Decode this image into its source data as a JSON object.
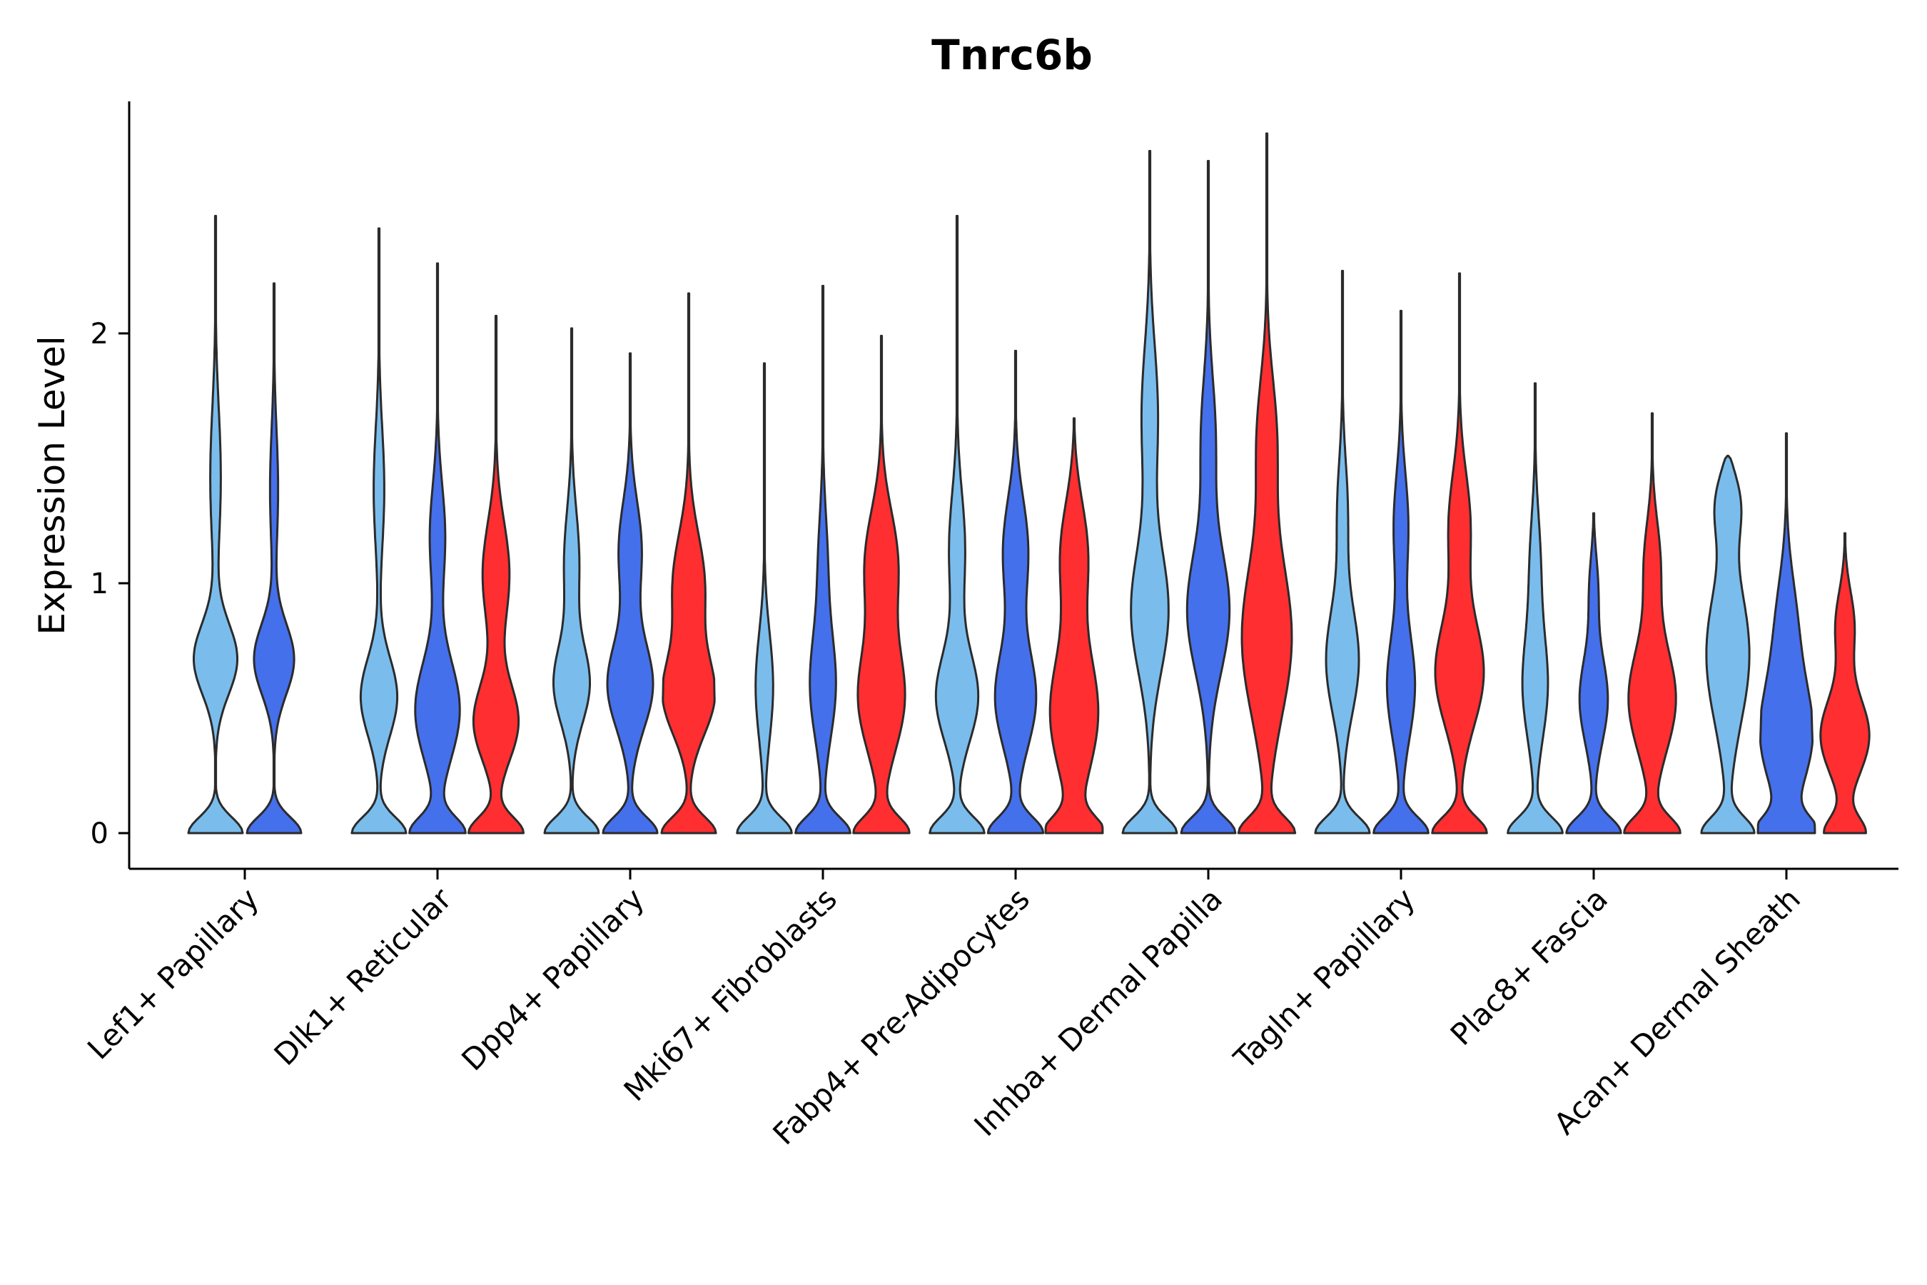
{
  "chart_data": {
    "type": "violin",
    "title": "Tnrc6b",
    "xlabel": "",
    "ylabel": "Expression Level",
    "ylim": [
      -0.14,
      2.95
    ],
    "yticks": [
      0,
      1,
      2
    ],
    "colors": {
      "light_blue": "#7ABDED",
      "blue": "#4570EC",
      "red": "#FF2E30",
      "outline": "#2B2B2B"
    },
    "categories": [
      {
        "label": "Lef1+ Papillary",
        "violins": [
          {
            "color": "light_blue",
            "max": 2.47,
            "w0": 0.95,
            "modes": [
              [
                0.7,
                0.85,
                0.2
              ],
              [
                1.45,
                0.25,
                0.4
              ]
            ]
          },
          {
            "color": "blue",
            "max": 2.2,
            "w0": 0.95,
            "modes": [
              [
                0.7,
                0.8,
                0.2
              ],
              [
                1.4,
                0.2,
                0.35
              ]
            ]
          }
        ]
      },
      {
        "label": "Dlk1+ Reticular",
        "violins": [
          {
            "color": "light_blue",
            "max": 2.42,
            "w0": 0.95,
            "modes": [
              [
                0.55,
                0.7,
                0.22
              ],
              [
                1.4,
                0.25,
                0.35
              ]
            ]
          },
          {
            "color": "blue",
            "max": 2.28,
            "w0": 0.95,
            "modes": [
              [
                0.5,
                0.85,
                0.28
              ],
              [
                1.2,
                0.35,
                0.3
              ]
            ]
          },
          {
            "color": "red",
            "max": 2.07,
            "w0": 0.95,
            "modes": [
              [
                0.45,
                0.85,
                0.22
              ],
              [
                1.05,
                0.6,
                0.3
              ]
            ]
          }
        ]
      },
      {
        "label": "Dpp4+ Papillary",
        "violins": [
          {
            "color": "light_blue",
            "max": 2.02,
            "w0": 0.95,
            "modes": [
              [
                0.6,
                0.7,
                0.22
              ],
              [
                1.1,
                0.35,
                0.3
              ]
            ]
          },
          {
            "color": "blue",
            "max": 1.92,
            "w0": 0.95,
            "modes": [
              [
                0.6,
                0.9,
                0.25
              ],
              [
                1.15,
                0.55,
                0.28
              ]
            ]
          },
          {
            "color": "red",
            "max": 2.16,
            "w0": 0.95,
            "modes": [
              [
                0.55,
                0.95,
                0.22
              ],
              [
                1.0,
                0.7,
                0.3
              ]
            ]
          }
        ]
      },
      {
        "label": "Mki67+ Fibroblasts",
        "violins": [
          {
            "color": "light_blue",
            "max": 1.88,
            "w0": 0.95,
            "modes": [
              [
                0.6,
                0.35,
                0.3
              ]
            ]
          },
          {
            "color": "blue",
            "max": 2.19,
            "w0": 0.95,
            "modes": [
              [
                0.6,
                0.5,
                0.3
              ],
              [
                1.1,
                0.2,
                0.3
              ]
            ]
          },
          {
            "color": "red",
            "max": 1.99,
            "w0": 0.95,
            "modes": [
              [
                0.55,
                0.9,
                0.3
              ],
              [
                1.1,
                0.75,
                0.3
              ]
            ]
          }
        ]
      },
      {
        "label": "Fabp4+ Pre-Adipocytes",
        "violins": [
          {
            "color": "light_blue",
            "max": 2.47,
            "w0": 0.95,
            "modes": [
              [
                0.55,
                0.8,
                0.25
              ],
              [
                1.15,
                0.35,
                0.32
              ]
            ]
          },
          {
            "color": "blue",
            "max": 1.93,
            "w0": 0.95,
            "modes": [
              [
                0.55,
                0.8,
                0.28
              ],
              [
                1.15,
                0.6,
                0.3
              ]
            ]
          },
          {
            "color": "red",
            "max": 1.66,
            "w0": 0.95,
            "modes": [
              [
                0.5,
                0.95,
                0.35
              ],
              [
                1.15,
                0.7,
                0.3
              ]
            ]
          }
        ]
      },
      {
        "label": "Inhba+ Dermal Papilla",
        "violins": [
          {
            "color": "light_blue",
            "max": 2.73,
            "w0": 0.95,
            "modes": [
              [
                0.9,
                0.75,
                0.35
              ],
              [
                1.7,
                0.4,
                0.4
              ]
            ]
          },
          {
            "color": "blue",
            "max": 2.69,
            "w0": 0.95,
            "modes": [
              [
                0.9,
                0.85,
                0.35
              ],
              [
                1.6,
                0.35,
                0.35
              ]
            ]
          },
          {
            "color": "red",
            "max": 2.8,
            "w0": 0.95,
            "modes": [
              [
                0.8,
                0.98,
                0.45
              ],
              [
                1.6,
                0.45,
                0.35
              ]
            ]
          }
        ]
      },
      {
        "label": "Tagln+ Papillary",
        "violins": [
          {
            "color": "light_blue",
            "max": 2.25,
            "w0": 0.95,
            "modes": [
              [
                0.7,
                0.65,
                0.3
              ],
              [
                1.3,
                0.25,
                0.3
              ]
            ]
          },
          {
            "color": "blue",
            "max": 2.09,
            "w0": 0.95,
            "modes": [
              [
                0.6,
                0.55,
                0.3
              ],
              [
                1.25,
                0.35,
                0.3
              ]
            ]
          },
          {
            "color": "red",
            "max": 2.24,
            "w0": 0.95,
            "modes": [
              [
                0.65,
                0.95,
                0.3
              ],
              [
                1.25,
                0.5,
                0.3
              ]
            ]
          }
        ]
      },
      {
        "label": "Plac8+ Fascia",
        "violins": [
          {
            "color": "light_blue",
            "max": 1.8,
            "w0": 0.95,
            "modes": [
              [
                0.6,
                0.5,
                0.3
              ],
              [
                1.1,
                0.25,
                0.3
              ]
            ]
          },
          {
            "color": "blue",
            "max": 1.28,
            "w0": 0.95,
            "modes": [
              [
                0.55,
                0.6,
                0.25
              ],
              [
                1.0,
                0.25,
                0.2
              ]
            ]
          },
          {
            "color": "red",
            "max": 1.68,
            "w0": 0.95,
            "modes": [
              [
                0.55,
                0.95,
                0.3
              ],
              [
                1.1,
                0.4,
                0.25
              ]
            ]
          }
        ]
      },
      {
        "label": "Acan+ Dermal Sheath",
        "violins": [
          {
            "color": "light_blue",
            "max": 1.51,
            "w0": 0.9,
            "modes": [
              [
                0.75,
                0.95,
                0.4
              ],
              [
                1.35,
                0.85,
                0.2
              ]
            ]
          },
          {
            "color": "blue",
            "max": 1.6,
            "w0": 0.95,
            "modes": [
              [
                0.4,
                0.98,
                0.3
              ],
              [
                0.85,
                0.45,
                0.3
              ]
            ]
          },
          {
            "color": "red",
            "max": 1.2,
            "w0": 0.7,
            "modes": [
              [
                0.4,
                0.98,
                0.22
              ],
              [
                0.85,
                0.5,
                0.2
              ]
            ]
          }
        ]
      }
    ]
  }
}
